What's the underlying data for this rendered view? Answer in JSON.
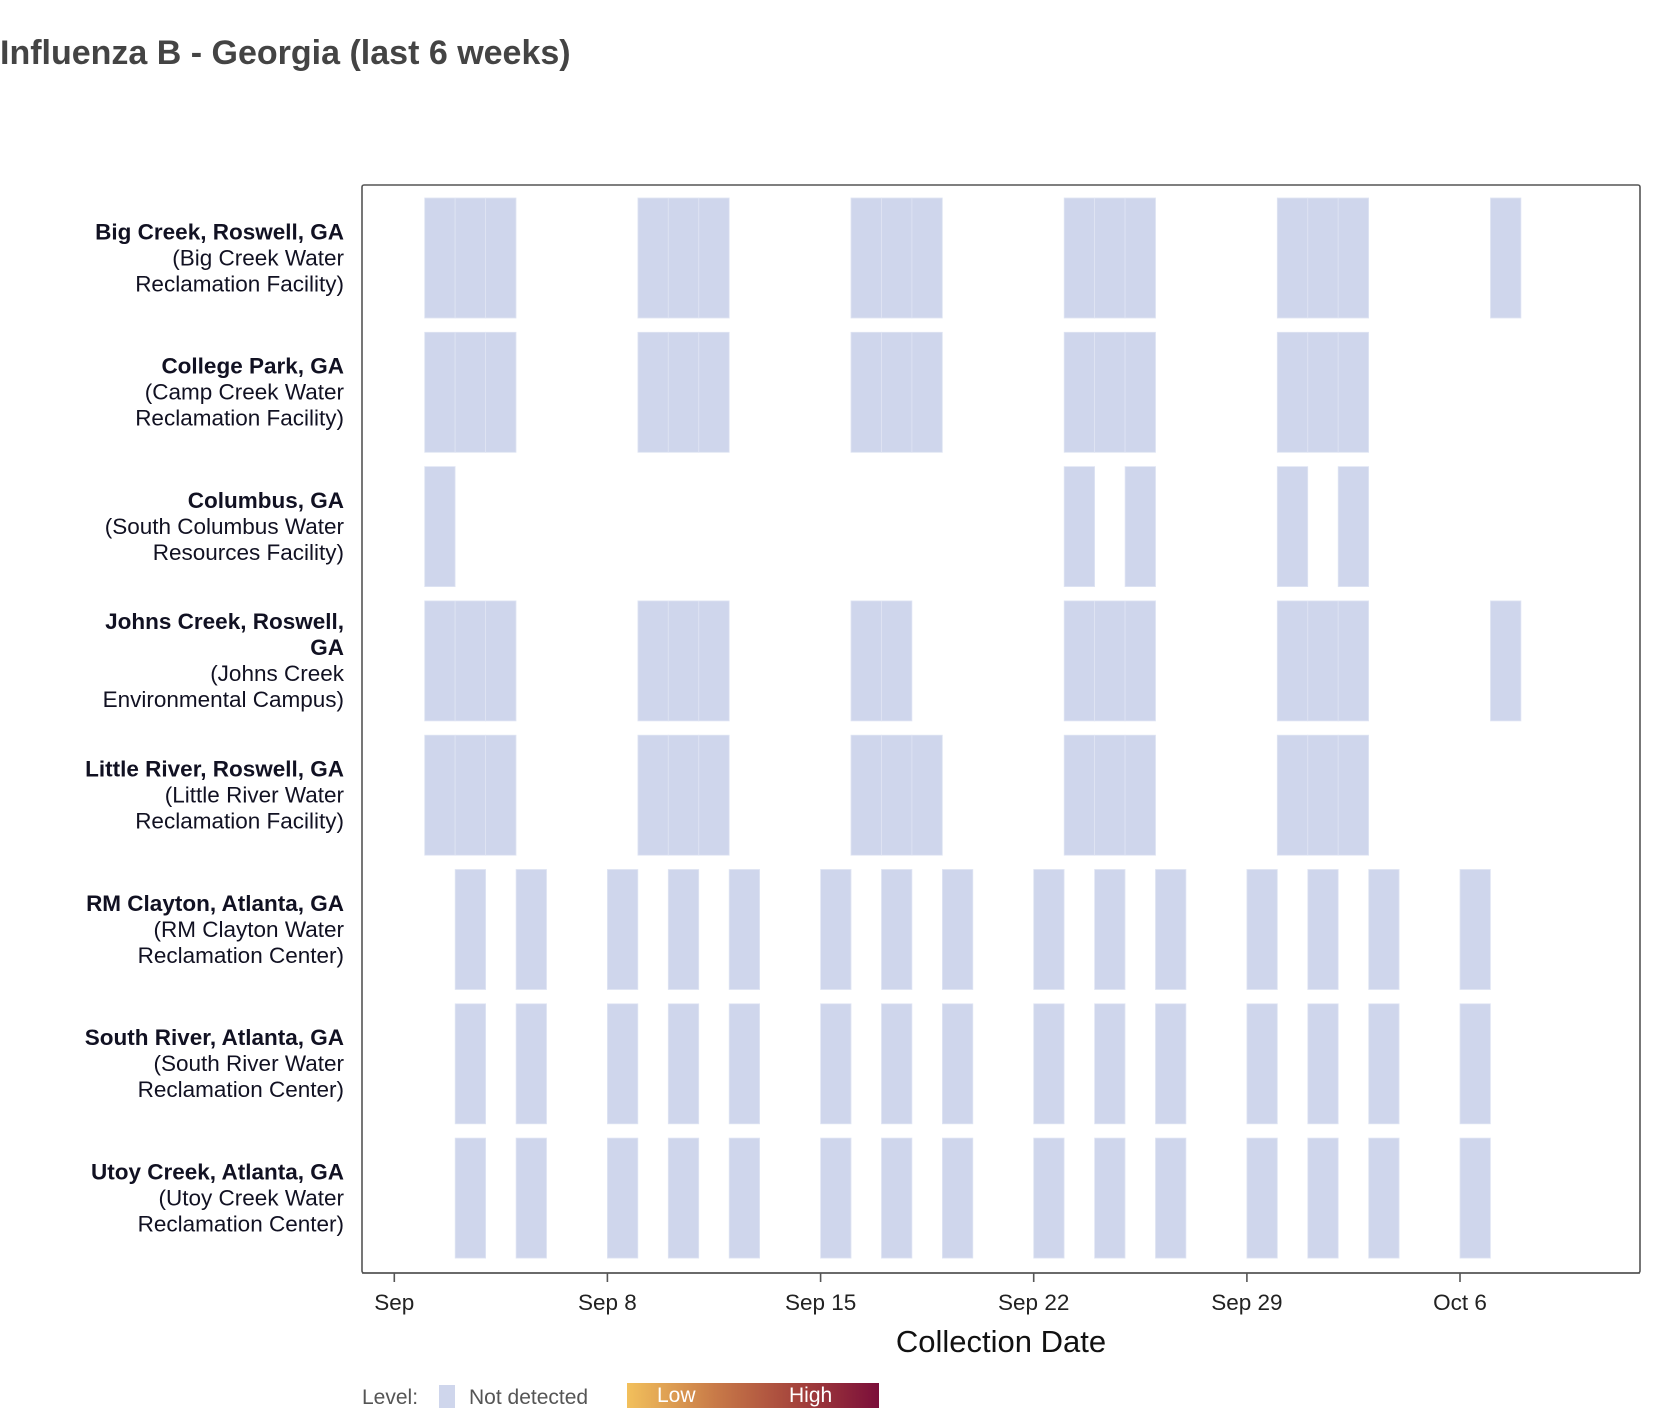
{
  "chart_data": {
    "type": "heatmap",
    "title": "Influenza B - Georgia (last 6 weeks)",
    "xlabel": "Collection Date",
    "ylabel": "",
    "x_axis": {
      "type": "date",
      "range": [
        "2024-09-01",
        "2024-10-12"
      ],
      "ticks": [
        {
          "date": "2024-09-01",
          "label": "Sep"
        },
        {
          "date": "2024-09-08",
          "label": "Sep 8"
        },
        {
          "date": "2024-09-15",
          "label": "Sep 15"
        },
        {
          "date": "2024-09-22",
          "label": "Sep 22"
        },
        {
          "date": "2024-09-29",
          "label": "Sep 29"
        },
        {
          "date": "2024-10-06",
          "label": "Oct 6"
        }
      ]
    },
    "sites": [
      {
        "name": "Big Creek, Roswell, GA",
        "name_lines": [
          "Big Creek, Roswell, GA"
        ],
        "facility_lines": [
          "(Big Creek Water",
          "Reclamation Facility)"
        ],
        "samples": [
          {
            "date": "2024-09-02",
            "level": "Not detected"
          },
          {
            "date": "2024-09-03",
            "level": "Not detected"
          },
          {
            "date": "2024-09-04",
            "level": "Not detected"
          },
          {
            "date": "2024-09-09",
            "level": "Not detected"
          },
          {
            "date": "2024-09-10",
            "level": "Not detected"
          },
          {
            "date": "2024-09-11",
            "level": "Not detected"
          },
          {
            "date": "2024-09-16",
            "level": "Not detected"
          },
          {
            "date": "2024-09-17",
            "level": "Not detected"
          },
          {
            "date": "2024-09-18",
            "level": "Not detected"
          },
          {
            "date": "2024-09-23",
            "level": "Not detected"
          },
          {
            "date": "2024-09-24",
            "level": "Not detected"
          },
          {
            "date": "2024-09-25",
            "level": "Not detected"
          },
          {
            "date": "2024-09-30",
            "level": "Not detected"
          },
          {
            "date": "2024-10-01",
            "level": "Not detected"
          },
          {
            "date": "2024-10-02",
            "level": "Not detected"
          },
          {
            "date": "2024-10-07",
            "level": "Not detected"
          }
        ]
      },
      {
        "name": "College Park, GA",
        "name_lines": [
          "College Park, GA"
        ],
        "facility_lines": [
          "(Camp Creek Water",
          "Reclamation Facility)"
        ],
        "samples": [
          {
            "date": "2024-09-02",
            "level": "Not detected"
          },
          {
            "date": "2024-09-03",
            "level": "Not detected"
          },
          {
            "date": "2024-09-04",
            "level": "Not detected"
          },
          {
            "date": "2024-09-09",
            "level": "Not detected"
          },
          {
            "date": "2024-09-10",
            "level": "Not detected"
          },
          {
            "date": "2024-09-11",
            "level": "Not detected"
          },
          {
            "date": "2024-09-16",
            "level": "Not detected"
          },
          {
            "date": "2024-09-17",
            "level": "Not detected"
          },
          {
            "date": "2024-09-18",
            "level": "Not detected"
          },
          {
            "date": "2024-09-23",
            "level": "Not detected"
          },
          {
            "date": "2024-09-24",
            "level": "Not detected"
          },
          {
            "date": "2024-09-25",
            "level": "Not detected"
          },
          {
            "date": "2024-09-30",
            "level": "Not detected"
          },
          {
            "date": "2024-10-01",
            "level": "Not detected"
          },
          {
            "date": "2024-10-02",
            "level": "Not detected"
          }
        ]
      },
      {
        "name": "Columbus, GA",
        "name_lines": [
          "Columbus, GA"
        ],
        "facility_lines": [
          "(South Columbus Water",
          "Resources Facility)"
        ],
        "samples": [
          {
            "date": "2024-09-02",
            "level": "Not detected"
          },
          {
            "date": "2024-09-23",
            "level": "Not detected"
          },
          {
            "date": "2024-09-25",
            "level": "Not detected"
          },
          {
            "date": "2024-09-30",
            "level": "Not detected"
          },
          {
            "date": "2024-10-02",
            "level": "Not detected"
          }
        ]
      },
      {
        "name": "Johns Creek, Roswell, GA",
        "name_lines": [
          "Johns Creek, Roswell,",
          "GA"
        ],
        "facility_lines": [
          "(Johns Creek",
          "Environmental Campus)"
        ],
        "samples": [
          {
            "date": "2024-09-02",
            "level": "Not detected"
          },
          {
            "date": "2024-09-03",
            "level": "Not detected"
          },
          {
            "date": "2024-09-04",
            "level": "Not detected"
          },
          {
            "date": "2024-09-09",
            "level": "Not detected"
          },
          {
            "date": "2024-09-10",
            "level": "Not detected"
          },
          {
            "date": "2024-09-11",
            "level": "Not detected"
          },
          {
            "date": "2024-09-16",
            "level": "Not detected"
          },
          {
            "date": "2024-09-17",
            "level": "Not detected"
          },
          {
            "date": "2024-09-23",
            "level": "Not detected"
          },
          {
            "date": "2024-09-24",
            "level": "Not detected"
          },
          {
            "date": "2024-09-25",
            "level": "Not detected"
          },
          {
            "date": "2024-09-30",
            "level": "Not detected"
          },
          {
            "date": "2024-10-01",
            "level": "Not detected"
          },
          {
            "date": "2024-10-02",
            "level": "Not detected"
          },
          {
            "date": "2024-10-07",
            "level": "Not detected"
          }
        ]
      },
      {
        "name": "Little River, Roswell, GA",
        "name_lines": [
          "Little River, Roswell, GA"
        ],
        "facility_lines": [
          "(Little River Water",
          "Reclamation Facility)"
        ],
        "samples": [
          {
            "date": "2024-09-02",
            "level": "Not detected"
          },
          {
            "date": "2024-09-03",
            "level": "Not detected"
          },
          {
            "date": "2024-09-04",
            "level": "Not detected"
          },
          {
            "date": "2024-09-09",
            "level": "Not detected"
          },
          {
            "date": "2024-09-10",
            "level": "Not detected"
          },
          {
            "date": "2024-09-11",
            "level": "Not detected"
          },
          {
            "date": "2024-09-16",
            "level": "Not detected"
          },
          {
            "date": "2024-09-17",
            "level": "Not detected"
          },
          {
            "date": "2024-09-18",
            "level": "Not detected"
          },
          {
            "date": "2024-09-23",
            "level": "Not detected"
          },
          {
            "date": "2024-09-24",
            "level": "Not detected"
          },
          {
            "date": "2024-09-25",
            "level": "Not detected"
          },
          {
            "date": "2024-09-30",
            "level": "Not detected"
          },
          {
            "date": "2024-10-01",
            "level": "Not detected"
          },
          {
            "date": "2024-10-02",
            "level": "Not detected"
          }
        ]
      },
      {
        "name": "RM Clayton, Atlanta, GA",
        "name_lines": [
          "RM Clayton, Atlanta, GA"
        ],
        "facility_lines": [
          "(RM Clayton Water",
          "Reclamation Center)"
        ],
        "samples": [
          {
            "date": "2024-09-03",
            "level": "Not detected"
          },
          {
            "date": "2024-09-05",
            "level": "Not detected"
          },
          {
            "date": "2024-09-08",
            "level": "Not detected"
          },
          {
            "date": "2024-09-10",
            "level": "Not detected"
          },
          {
            "date": "2024-09-12",
            "level": "Not detected"
          },
          {
            "date": "2024-09-15",
            "level": "Not detected"
          },
          {
            "date": "2024-09-17",
            "level": "Not detected"
          },
          {
            "date": "2024-09-19",
            "level": "Not detected"
          },
          {
            "date": "2024-09-22",
            "level": "Not detected"
          },
          {
            "date": "2024-09-24",
            "level": "Not detected"
          },
          {
            "date": "2024-09-26",
            "level": "Not detected"
          },
          {
            "date": "2024-09-29",
            "level": "Not detected"
          },
          {
            "date": "2024-10-01",
            "level": "Not detected"
          },
          {
            "date": "2024-10-03",
            "level": "Not detected"
          },
          {
            "date": "2024-10-06",
            "level": "Not detected"
          }
        ]
      },
      {
        "name": "South River, Atlanta, GA",
        "name_lines": [
          "South River, Atlanta, GA"
        ],
        "facility_lines": [
          "(South River Water",
          "Reclamation Center)"
        ],
        "samples": [
          {
            "date": "2024-09-03",
            "level": "Not detected"
          },
          {
            "date": "2024-09-05",
            "level": "Not detected"
          },
          {
            "date": "2024-09-08",
            "level": "Not detected"
          },
          {
            "date": "2024-09-10",
            "level": "Not detected"
          },
          {
            "date": "2024-09-12",
            "level": "Not detected"
          },
          {
            "date": "2024-09-15",
            "level": "Not detected"
          },
          {
            "date": "2024-09-17",
            "level": "Not detected"
          },
          {
            "date": "2024-09-19",
            "level": "Not detected"
          },
          {
            "date": "2024-09-22",
            "level": "Not detected"
          },
          {
            "date": "2024-09-24",
            "level": "Not detected"
          },
          {
            "date": "2024-09-26",
            "level": "Not detected"
          },
          {
            "date": "2024-09-29",
            "level": "Not detected"
          },
          {
            "date": "2024-10-01",
            "level": "Not detected"
          },
          {
            "date": "2024-10-03",
            "level": "Not detected"
          },
          {
            "date": "2024-10-06",
            "level": "Not detected"
          }
        ]
      },
      {
        "name": "Utoy Creek, Atlanta, GA",
        "name_lines": [
          "Utoy Creek, Atlanta, GA"
        ],
        "facility_lines": [
          "(Utoy Creek Water",
          "Reclamation Center)"
        ],
        "samples": [
          {
            "date": "2024-09-03",
            "level": "Not detected"
          },
          {
            "date": "2024-09-05",
            "level": "Not detected"
          },
          {
            "date": "2024-09-08",
            "level": "Not detected"
          },
          {
            "date": "2024-09-10",
            "level": "Not detected"
          },
          {
            "date": "2024-09-12",
            "level": "Not detected"
          },
          {
            "date": "2024-09-15",
            "level": "Not detected"
          },
          {
            "date": "2024-09-17",
            "level": "Not detected"
          },
          {
            "date": "2024-09-19",
            "level": "Not detected"
          },
          {
            "date": "2024-09-22",
            "level": "Not detected"
          },
          {
            "date": "2024-09-24",
            "level": "Not detected"
          },
          {
            "date": "2024-09-26",
            "level": "Not detected"
          },
          {
            "date": "2024-09-29",
            "level": "Not detected"
          },
          {
            "date": "2024-10-01",
            "level": "Not detected"
          },
          {
            "date": "2024-10-03",
            "level": "Not detected"
          },
          {
            "date": "2024-10-06",
            "level": "Not detected"
          }
        ]
      }
    ],
    "legend": {
      "title": "Level:",
      "placement": "bottom-left",
      "not_detected": {
        "label": "Not detected",
        "color": "#cfd6ec"
      },
      "gradient": {
        "low_label": "Low",
        "high_label": "High",
        "colors": [
          "#f2c05c",
          "#c87a48",
          "#a23f3b",
          "#7b0e3a"
        ]
      }
    },
    "colors": {
      "not_detected": "#cfd6ec",
      "panel_border": "#555555",
      "title": "#444444"
    },
    "grid": false
  }
}
